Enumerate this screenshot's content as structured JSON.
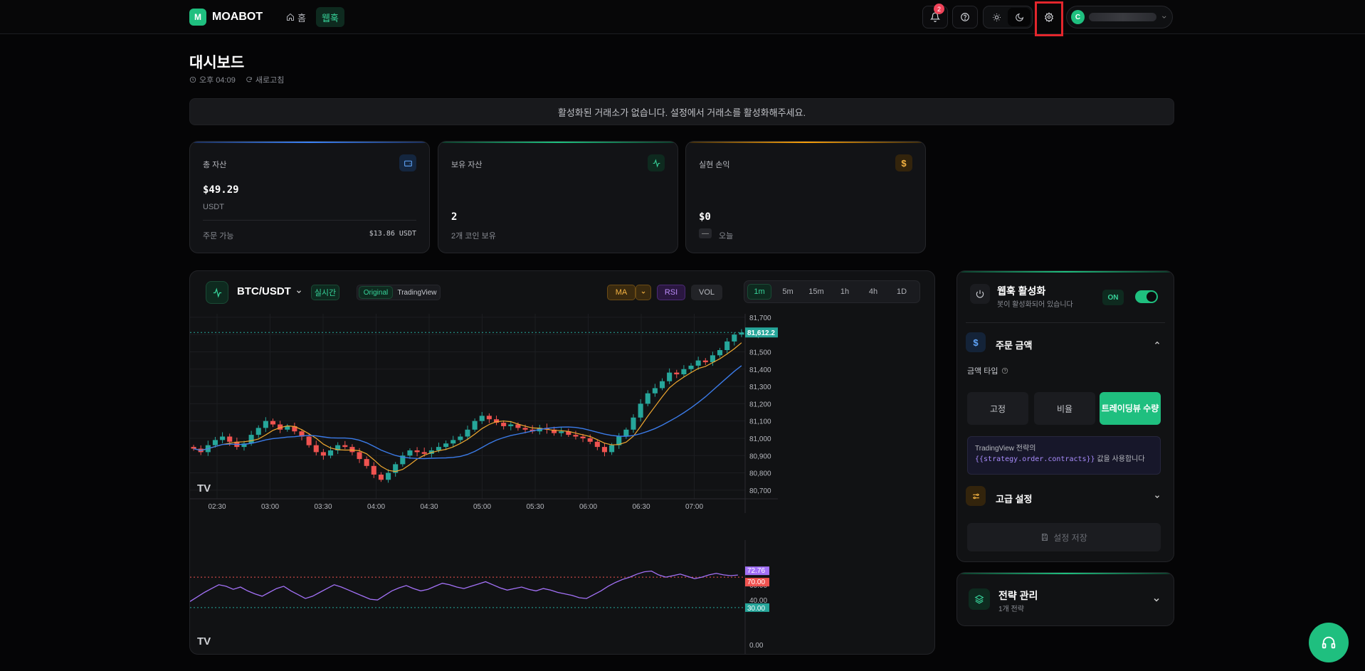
{
  "header": {
    "logo_letter": "M",
    "app_name": "MOABOT",
    "nav": [
      {
        "label": "홈"
      },
      {
        "label": "웹훅"
      }
    ],
    "notification_count": "2",
    "user_initial": "C"
  },
  "page": {
    "title": "대시보드",
    "time": "오후 04:09",
    "refresh_label": "새로고침",
    "notice": "활성화된 거래소가 없습니다. 설정에서 거래소를 활성화해주세요."
  },
  "cards": {
    "total": {
      "label": "총 자산",
      "value": "$49.29",
      "unit": "USDT",
      "footer_label": "주문 가능",
      "footer_value": "$13.86 USDT",
      "accent": "#3b82f6"
    },
    "holding": {
      "label": "보유 자산",
      "value": "2",
      "sub": "2개 코인 보유",
      "accent": "#1fbf7f"
    },
    "pnl": {
      "label": "실현 손익",
      "value": "$0",
      "sub": "오늘",
      "accent": "#f59e0b"
    }
  },
  "chart_panel": {
    "symbol": "BTC/USDT",
    "live_label": "실시간",
    "view_original": "Original",
    "view_tradingview": "TradingView",
    "ma_label": "MA",
    "rsi_label": "RSI",
    "vol_label": "VOL",
    "timeframes": [
      "1m",
      "5m",
      "15m",
      "1h",
      "4h",
      "1D"
    ],
    "active_timeframe": "1m"
  },
  "chart_data": {
    "type": "candlestick",
    "symbol": "BTC/USDT",
    "x_ticks": [
      "02:30",
      "03:00",
      "03:30",
      "04:00",
      "04:30",
      "05:00",
      "05:30",
      "06:00",
      "06:30",
      "07:00"
    ],
    "y_ticks": [
      81700,
      81600,
      81500,
      81400,
      81300,
      81200,
      81100,
      81000,
      80900,
      80800,
      80700
    ],
    "ylim": [
      80650,
      81720
    ],
    "last_price": "81,612.2",
    "close_series": [
      80940,
      80920,
      80960,
      80990,
      81010,
      80980,
      80950,
      80970,
      81020,
      81060,
      81100,
      81080,
      81050,
      81070,
      81040,
      81010,
      80960,
      80920,
      80900,
      80930,
      80960,
      80950,
      80920,
      80880,
      80840,
      80790,
      80760,
      80800,
      80850,
      80900,
      80930,
      80920,
      80910,
      80930,
      80950,
      80970,
      80990,
      81010,
      81050,
      81100,
      81130,
      81110,
      81090,
      81070,
      81080,
      81060,
      81050,
      81040,
      81060,
      81050,
      81030,
      81040,
      81020,
      81010,
      81000,
      80980,
      80950,
      80920,
      80960,
      81010,
      81050,
      81120,
      81200,
      81260,
      81290,
      81330,
      81380,
      81370,
      81400,
      81420,
      81450,
      81440,
      81480,
      81510,
      81560,
      81600,
      81612
    ],
    "ma_fast_label": "MA",
    "rsi": {
      "label": "RSI",
      "levels": [
        70,
        30
      ],
      "last": "72.76",
      "upper_label": "70.00",
      "lower_label": "30.00",
      "y_ticks": [
        "80.00",
        "60.00",
        "40.00",
        "0.00"
      ],
      "values": [
        38,
        44,
        50,
        55,
        60,
        58,
        54,
        57,
        52,
        48,
        45,
        50,
        55,
        58,
        52,
        47,
        42,
        45,
        50,
        55,
        60,
        57,
        53,
        49,
        45,
        41,
        40,
        46,
        52,
        56,
        59,
        55,
        52,
        54,
        58,
        62,
        60,
        57,
        55,
        58,
        61,
        64,
        60,
        56,
        53,
        55,
        57,
        54,
        52,
        55,
        53,
        50,
        48,
        46,
        43,
        42,
        47,
        52,
        58,
        63,
        67,
        70,
        74,
        77,
        78,
        73,
        70,
        72,
        74,
        71,
        68,
        70,
        73,
        75,
        73,
        72,
        72.76
      ]
    },
    "colors": {
      "up": "#26a69a",
      "down": "#ef5350",
      "ma_fast": "#f0a830",
      "ma_slow": "#3b7be8",
      "rsi": "#a371f7"
    }
  },
  "webhook": {
    "title": "웹훅 활성화",
    "subtitle": "봇이 활성화되어 있습니다",
    "toggle_label": "ON",
    "order_amount_title": "주문 금액",
    "amount_type_label": "금액 타입",
    "options": [
      "고정",
      "비율",
      "트레이딩뷰 수량"
    ],
    "active_option": "트레이딩뷰 수량",
    "info_prefix": "TradingView 전략의",
    "info_code": "{{strategy.order.contracts}}",
    "info_suffix": "값을 사용합니다",
    "advanced_title": "고급 설정",
    "save_label": "설정 저장"
  },
  "strategy": {
    "title": "전략 관리",
    "subtitle": "1개 전략"
  }
}
